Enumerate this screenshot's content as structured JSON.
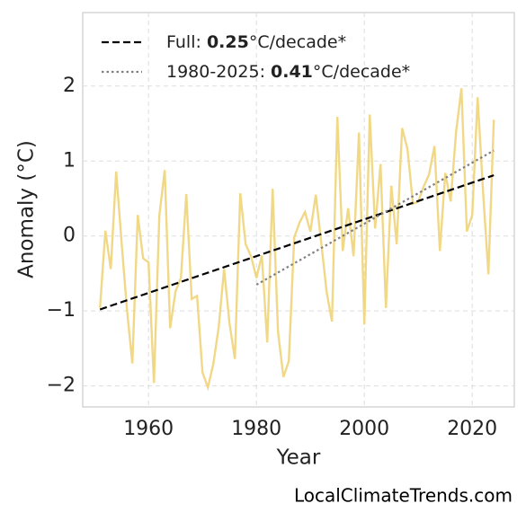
{
  "chart_data": {
    "type": "line",
    "x_label": "Year",
    "y_label": "Anomaly (°C)",
    "source": "LocalClimateTrends.com",
    "xlim": [
      1947.8,
      2027.8
    ],
    "ylim": [
      -2.28,
      2.98
    ],
    "xticks": [
      1960,
      1980,
      2000,
      2020
    ],
    "yticks": [
      {
        "value": -2,
        "label": "−2"
      },
      {
        "value": -1,
        "label": "−1"
      },
      0,
      1,
      2
    ],
    "grid": true,
    "legend": "upper left",
    "series": [
      {
        "color": "#f0d47a",
        "style": "solid",
        "x": [
          1951,
          1952,
          1953,
          1954,
          1955,
          1956,
          1957,
          1958,
          1959,
          1960,
          1961,
          1962,
          1963,
          1964,
          1965,
          1966,
          1967,
          1968,
          1969,
          1970,
          1971,
          1972,
          1973,
          1974,
          1975,
          1976,
          1977,
          1978,
          1979,
          1980,
          1981,
          1982,
          1983,
          1984,
          1985,
          1986,
          1987,
          1988,
          1989,
          1990,
          1991,
          1992,
          1993,
          1994,
          1995,
          1996,
          1997,
          1998,
          1999,
          2000,
          2001,
          2002,
          2003,
          2004,
          2005,
          2006,
          2007,
          2008,
          2009,
          2010,
          2011,
          2012,
          2013,
          2014,
          2015,
          2016,
          2017,
          2018,
          2019,
          2020,
          2021,
          2022,
          2023,
          2024
        ],
        "values": [
          -0.96,
          0.07,
          -0.44,
          0.86,
          -0.08,
          -0.98,
          -1.7,
          0.28,
          -0.3,
          -0.35,
          -1.96,
          0.27,
          0.88,
          -1.23,
          -0.74,
          -0.56,
          0.56,
          -0.84,
          -0.8,
          -1.82,
          -2.02,
          -1.71,
          -1.22,
          -0.44,
          -1.16,
          -1.64,
          0.57,
          -0.11,
          -0.27,
          -0.56,
          -0.26,
          -1.42,
          0.63,
          -1.28,
          -1.88,
          -1.67,
          -0.02,
          0.18,
          0.32,
          0.06,
          0.55,
          -0.08,
          -0.74,
          -1.14,
          1.59,
          -0.2,
          0.37,
          -0.27,
          1.38,
          -1.18,
          1.62,
          0.1,
          0.96,
          -0.96,
          0.67,
          -0.11,
          1.44,
          1.16,
          0.43,
          0.46,
          0.66,
          0.82,
          1.2,
          -0.2,
          0.84,
          0.46,
          1.38,
          1.97,
          0.06,
          0.28,
          1.85,
          0.6,
          -0.51,
          1.55
        ]
      },
      {
        "name": [
          "Full: ",
          "0.25",
          "°C/decade*"
        ],
        "color": "#000000",
        "style": "dashed",
        "x": [
          1951,
          2024
        ],
        "values": [
          -0.98,
          0.81
        ]
      },
      {
        "name": [
          "1980-2025: ",
          "0.41",
          "°C/decade*"
        ],
        "color": "#808080",
        "style": "dotted",
        "x": [
          1980,
          2024
        ],
        "values": [
          -0.65,
          1.14
        ]
      }
    ]
  }
}
